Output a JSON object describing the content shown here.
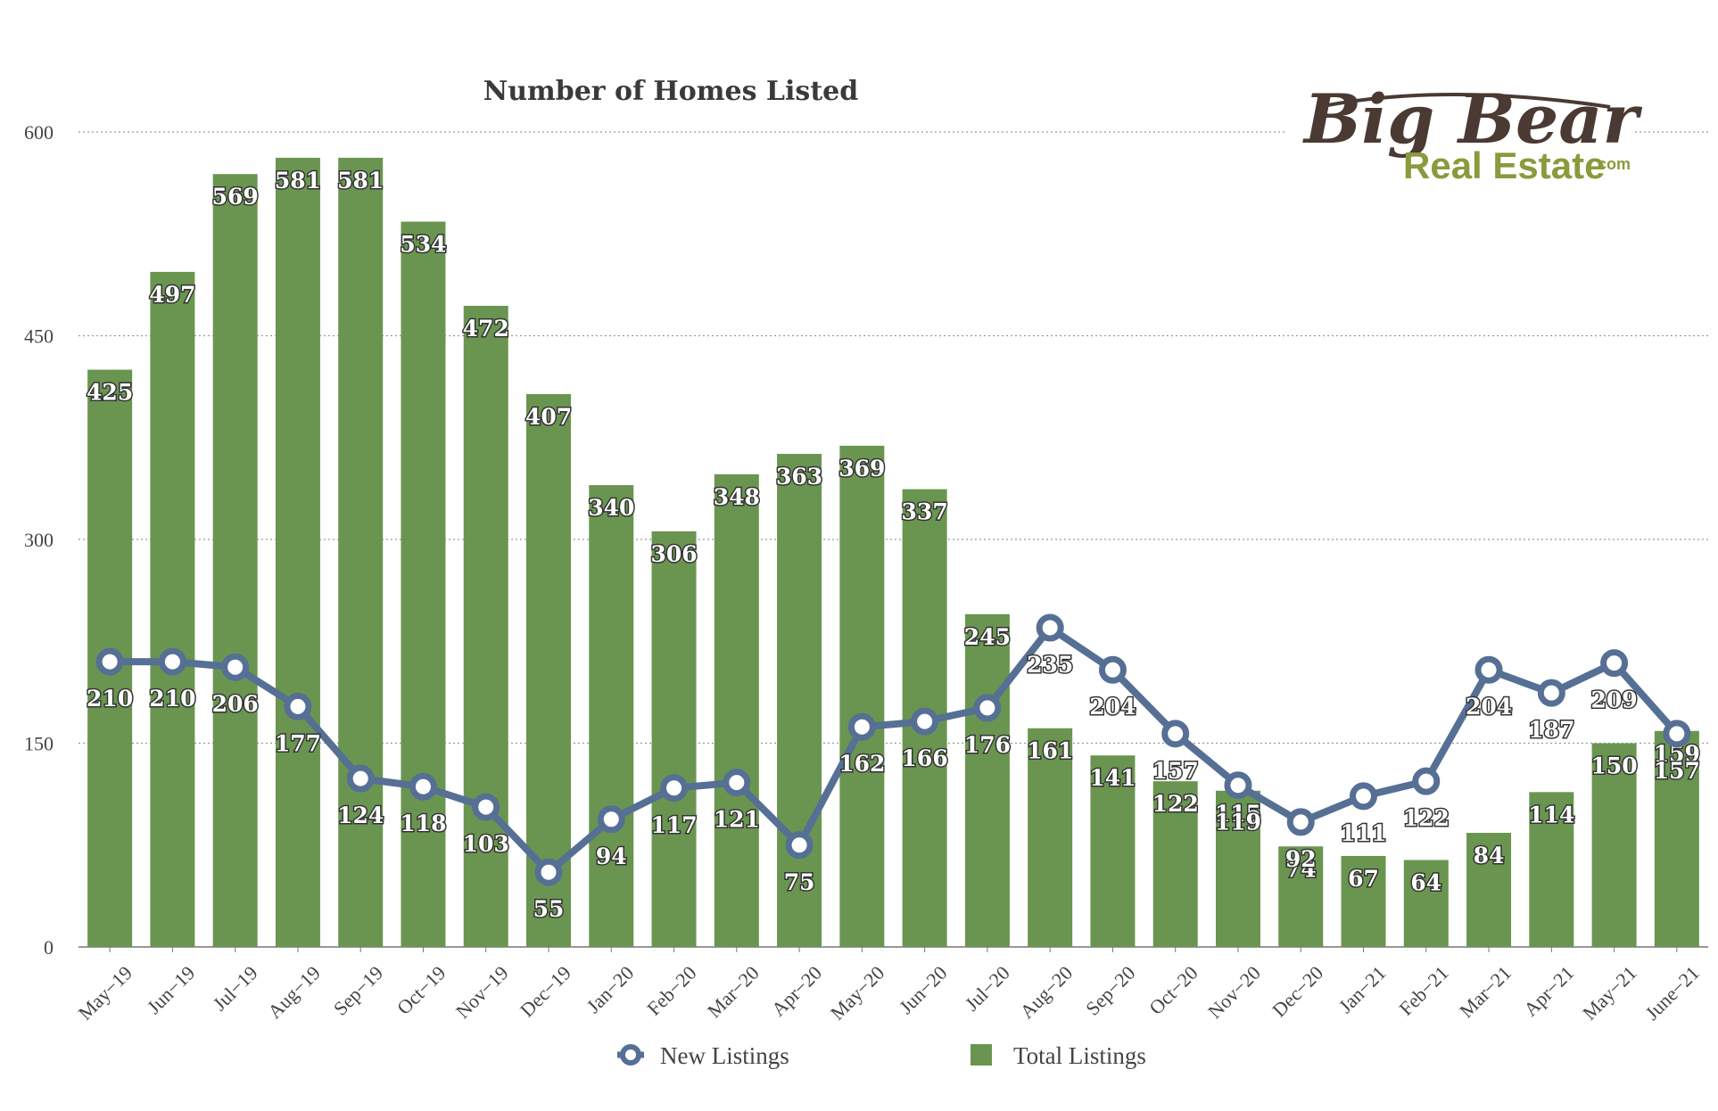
{
  "chart_data": {
    "type": "bar",
    "title": "Number of Homes Listed",
    "categories": [
      "May−19",
      "Jun−19",
      "Jul−19",
      "Aug−19",
      "Sep−19",
      "Oct−19",
      "Nov−19",
      "Dec−19",
      "Jan−20",
      "Feb−20",
      "Mar−20",
      "Apr−20",
      "May−20",
      "Jun−20",
      "Jul−20",
      "Aug−20",
      "Sep−20",
      "Oct−20",
      "Nov−20",
      "Dec−20",
      "Jan−21",
      "Feb−21",
      "Mar−21",
      "Apr−21",
      "May−21",
      "June−21"
    ],
    "series": [
      {
        "name": "Total Listings",
        "type": "bar",
        "color": "#6a9550",
        "values": [
          425,
          497,
          569,
          581,
          581,
          534,
          472,
          407,
          340,
          306,
          348,
          363,
          369,
          337,
          245,
          161,
          141,
          122,
          115,
          74,
          67,
          64,
          84,
          114,
          150,
          159
        ]
      },
      {
        "name": "New Listings",
        "type": "line",
        "color": "#566f94",
        "values": [
          210,
          210,
          206,
          177,
          124,
          118,
          103,
          55,
          94,
          117,
          121,
          75,
          162,
          166,
          176,
          235,
          204,
          157,
          119,
          92,
          111,
          122,
          204,
          187,
          209,
          157
        ]
      }
    ],
    "y_ticks": [
      "0",
      "150",
      "300",
      "450",
      "600"
    ],
    "ylim": [
      0,
      600
    ],
    "xlabel": "",
    "ylabel": "",
    "grid": "horizontal-dotted",
    "legend_position": "bottom"
  },
  "logo": {
    "name": "Big Bear",
    "sub": "Real Estate",
    "suffix": ".com"
  }
}
